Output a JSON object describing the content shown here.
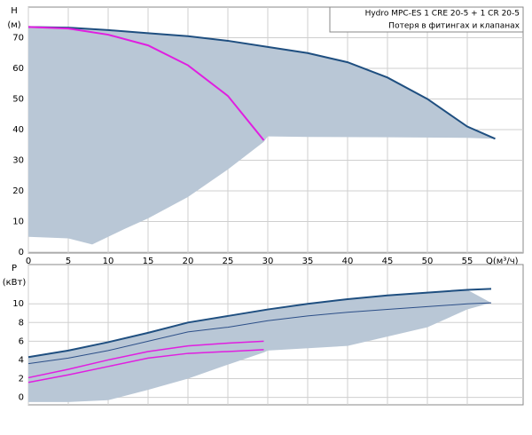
{
  "chart_data": [
    {
      "type": "line",
      "ylabel": [
        "H",
        "(м)"
      ],
      "xlabel": "Q(м³/ч)",
      "annotations": [
        "Hydro MPC-ES 1 CRE 20-5  +  1 CR 20-5",
        "Потеря в фитингах и клапанах"
      ],
      "xlim": [
        0,
        62
      ],
      "ylim": [
        -0.3,
        80
      ],
      "xticks": [
        0,
        5,
        10,
        15,
        20,
        25,
        30,
        35,
        40,
        45,
        50,
        55
      ],
      "yticks": [
        0,
        10,
        20,
        30,
        40,
        50,
        60,
        70
      ],
      "grid": true,
      "region": {
        "color": "#b9c7d6",
        "x": [
          0,
          5,
          10,
          15,
          20,
          25,
          30,
          35,
          40,
          45,
          50,
          55,
          58.5,
          55,
          45,
          35,
          30,
          29.5,
          25,
          20,
          15,
          12,
          8,
          5,
          0
        ],
        "y": [
          73.5,
          73.3,
          72.5,
          71.5,
          70.5,
          69,
          67,
          65,
          62,
          57,
          50,
          41,
          37,
          37.3,
          37.5,
          37.6,
          37.8,
          36,
          27,
          18,
          11,
          7.5,
          2.5,
          4.5,
          5
        ]
      },
      "series": [
        {
          "color": "#1f4f80",
          "width": 2,
          "x": [
            0,
            5,
            10,
            15,
            20,
            25,
            30,
            35,
            40,
            45,
            50,
            55,
            58.5
          ],
          "values": [
            73.5,
            73.3,
            72.5,
            71.5,
            70.5,
            69,
            67,
            65,
            62,
            57,
            50,
            41,
            37
          ]
        },
        {
          "color": "#e01ee0",
          "width": 2,
          "x": [
            0,
            5,
            10,
            15,
            20,
            25,
            29.5
          ],
          "values": [
            73.5,
            73,
            71,
            67.5,
            61,
            51,
            36.5
          ]
        }
      ]
    },
    {
      "type": "line",
      "ylabel": [
        "P",
        "(кВт)"
      ],
      "xlim": [
        0,
        62
      ],
      "ylim": [
        -0.8,
        14.2
      ],
      "yticks": [
        0,
        2,
        4,
        6,
        8,
        10
      ],
      "grid": true,
      "region": {
        "color": "#b9c7d6",
        "x": [
          0,
          5,
          10,
          15,
          20,
          25,
          30,
          35,
          40,
          45,
          50,
          55,
          58,
          55,
          50,
          40,
          30,
          29.5,
          25,
          20,
          15,
          10,
          5,
          0
        ],
        "y": [
          4.3,
          5,
          5.9,
          6.9,
          8,
          8.7,
          9.4,
          10,
          10.5,
          10.9,
          11.2,
          11.5,
          10.1,
          9.4,
          7.5,
          5.5,
          5,
          4.8,
          3.5,
          2,
          0.8,
          -0.3,
          -0.5,
          -0.5
        ]
      },
      "series": [
        {
          "color": "#1f4f80",
          "width": 2,
          "x": [
            0,
            5,
            10,
            15,
            20,
            25,
            30,
            35,
            40,
            45,
            50,
            55,
            58
          ],
          "values": [
            4.3,
            5,
            5.9,
            6.9,
            8,
            8.7,
            9.4,
            10,
            10.5,
            10.9,
            11.2,
            11.5,
            11.6
          ]
        },
        {
          "color": "#2c4f88",
          "width": 1,
          "x": [
            0,
            5,
            10,
            15,
            20,
            25,
            30,
            35,
            40,
            45,
            50,
            55,
            58
          ],
          "values": [
            3.6,
            4.2,
            5,
            6,
            7,
            7.5,
            8.2,
            8.7,
            9.1,
            9.4,
            9.7,
            10,
            10.1
          ]
        },
        {
          "color": "#e01ee0",
          "width": 1.5,
          "x": [
            0,
            5,
            10,
            15,
            20,
            25,
            29.5
          ],
          "values": [
            2.1,
            3,
            4,
            4.9,
            5.5,
            5.8,
            6
          ]
        },
        {
          "color": "#e01ee0",
          "width": 1.5,
          "x": [
            0,
            5,
            10,
            15,
            20,
            25,
            29.5
          ],
          "values": [
            1.6,
            2.4,
            3.3,
            4.2,
            4.7,
            4.9,
            5.1
          ]
        }
      ]
    }
  ]
}
